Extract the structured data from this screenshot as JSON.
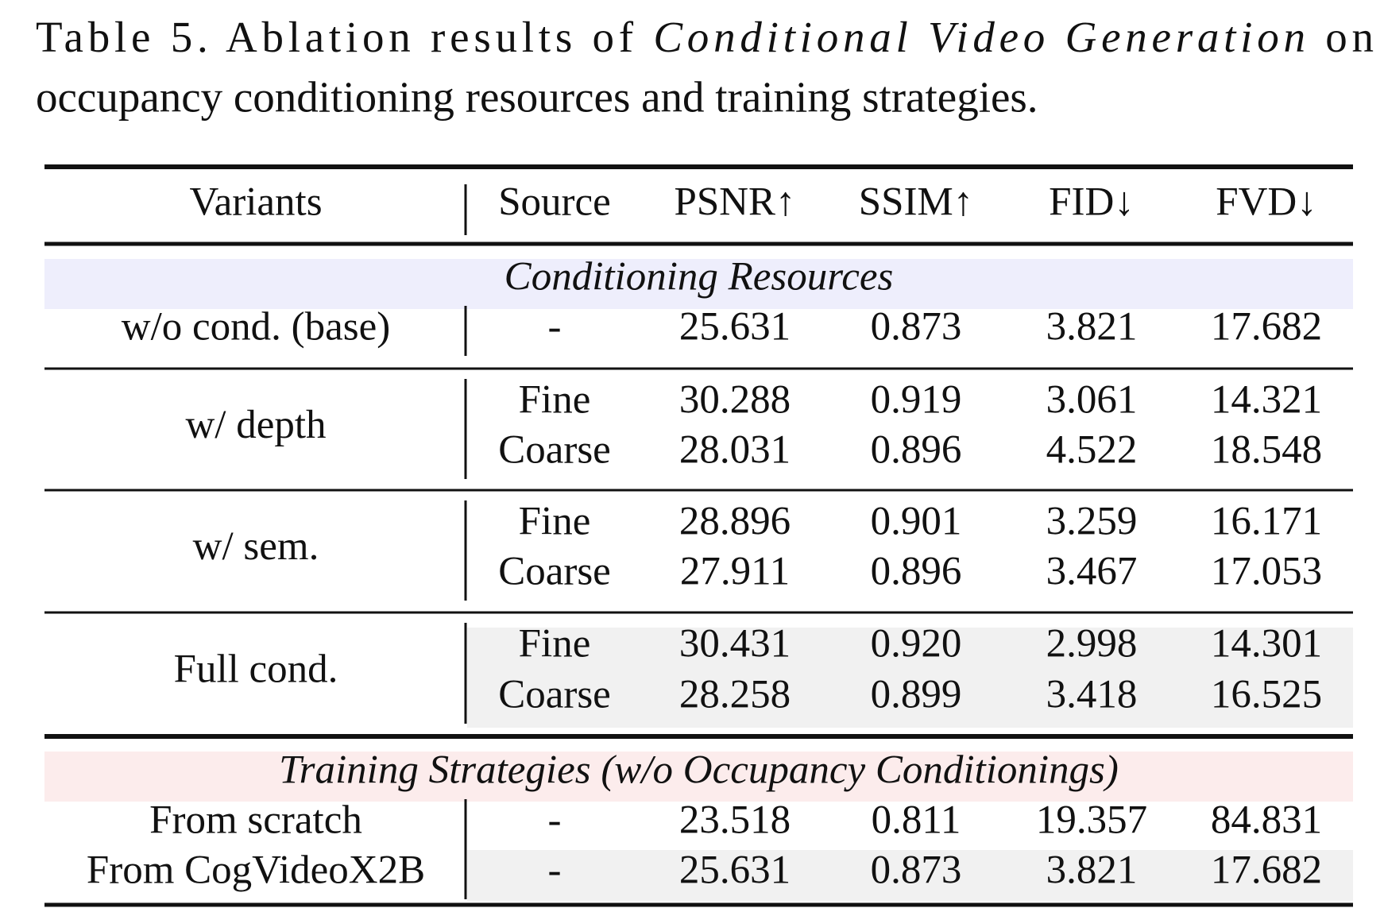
{
  "caption": {
    "label": "Table 5.",
    "text": "Ablation results of",
    "emphasis": "Conditional Video Generation",
    "text_end": "on",
    "second_line": "occupancy conditioning resources and training strategies."
  },
  "table": {
    "headers": [
      "Variants",
      "Source",
      "PSNR↑",
      "SSIM↑",
      "FID↓",
      "FVD↓"
    ],
    "sections": [
      {
        "title": "Conditioning Resources",
        "groups": [
          {
            "variant": "w/o cond. (base)",
            "rows": [
              [
                "-",
                "25.631",
                "0.873",
                "3.821",
                "17.682"
              ]
            ]
          },
          {
            "variant": "w/ depth",
            "rows": [
              [
                "Fine",
                "30.288",
                "0.919",
                "3.061",
                "14.321"
              ],
              [
                "Coarse",
                "28.031",
                "0.896",
                "4.522",
                "18.548"
              ]
            ]
          },
          {
            "variant": "w/ sem.",
            "rows": [
              [
                "Fine",
                "28.896",
                "0.901",
                "3.259",
                "16.171"
              ],
              [
                "Coarse",
                "27.911",
                "0.896",
                "3.467",
                "17.053"
              ]
            ]
          },
          {
            "variant": "Full cond.",
            "rows": [
              [
                "Fine",
                "30.431",
                "0.920",
                "2.998",
                "14.301"
              ],
              [
                "Coarse",
                "28.258",
                "0.899",
                "3.418",
                "16.525"
              ]
            ]
          }
        ]
      },
      {
        "title": "Training Strategies (w/o Occupancy Conditionings)",
        "groups": [
          {
            "variant": "From scratch",
            "rows": [
              [
                "-",
                "23.518",
                "0.811",
                "19.357",
                "84.831"
              ]
            ]
          },
          {
            "variant": "From CogVideoX2B",
            "rows": [
              [
                "-",
                "25.631",
                "0.873",
                "3.821",
                "17.682"
              ]
            ]
          }
        ]
      }
    ]
  }
}
